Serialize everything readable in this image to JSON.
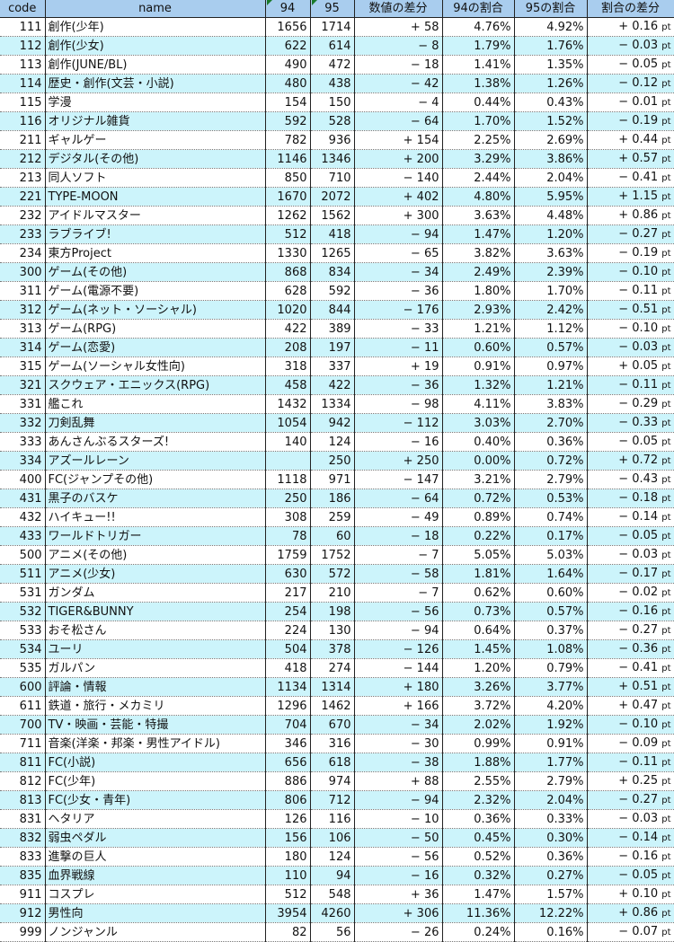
{
  "header": [
    "code",
    "name",
    "94",
    "95",
    "数値の差分",
    "94の割合",
    "95の割合",
    "割合の差分"
  ],
  "pt_suffix": "pt",
  "accent_colors": {
    "header_bg": "#a9cdee",
    "alt_row_bg": "#ccf4fb"
  },
  "rows": [
    [
      "111",
      "創作(少年)",
      "1656",
      "1714",
      "+ 58",
      "4.76%",
      "4.92%",
      "+ 0.16"
    ],
    [
      "112",
      "創作(少女)",
      "622",
      "614",
      "− 8",
      "1.79%",
      "1.76%",
      "− 0.03"
    ],
    [
      "113",
      "創作(JUNE/BL)",
      "490",
      "472",
      "− 18",
      "1.41%",
      "1.35%",
      "− 0.05"
    ],
    [
      "114",
      "歴史・創作(文芸・小説)",
      "480",
      "438",
      "− 42",
      "1.38%",
      "1.26%",
      "− 0.12"
    ],
    [
      "115",
      "学漫",
      "154",
      "150",
      "− 4",
      "0.44%",
      "0.43%",
      "− 0.01"
    ],
    [
      "116",
      "オリジナル雑貨",
      "592",
      "528",
      "− 64",
      "1.70%",
      "1.52%",
      "− 0.19"
    ],
    [
      "211",
      "ギャルゲー",
      "782",
      "936",
      "+ 154",
      "2.25%",
      "2.69%",
      "+ 0.44"
    ],
    [
      "212",
      "デジタル(その他)",
      "1146",
      "1346",
      "+ 200",
      "3.29%",
      "3.86%",
      "+ 0.57"
    ],
    [
      "213",
      "同人ソフト",
      "850",
      "710",
      "− 140",
      "2.44%",
      "2.04%",
      "− 0.41"
    ],
    [
      "221",
      "TYPE-MOON",
      "1670",
      "2072",
      "+ 402",
      "4.80%",
      "5.95%",
      "+ 1.15"
    ],
    [
      "232",
      "アイドルマスター",
      "1262",
      "1562",
      "+ 300",
      "3.63%",
      "4.48%",
      "+ 0.86"
    ],
    [
      "233",
      "ラブライブ!",
      "512",
      "418",
      "− 94",
      "1.47%",
      "1.20%",
      "− 0.27"
    ],
    [
      "234",
      "東方Project",
      "1330",
      "1265",
      "− 65",
      "3.82%",
      "3.63%",
      "− 0.19"
    ],
    [
      "300",
      "ゲーム(その他)",
      "868",
      "834",
      "− 34",
      "2.49%",
      "2.39%",
      "− 0.10"
    ],
    [
      "311",
      "ゲーム(電源不要)",
      "628",
      "592",
      "− 36",
      "1.80%",
      "1.70%",
      "− 0.11"
    ],
    [
      "312",
      "ゲーム(ネット・ソーシャル)",
      "1020",
      "844",
      "− 176",
      "2.93%",
      "2.42%",
      "− 0.51"
    ],
    [
      "313",
      "ゲーム(RPG)",
      "422",
      "389",
      "− 33",
      "1.21%",
      "1.12%",
      "− 0.10"
    ],
    [
      "314",
      "ゲーム(恋愛)",
      "208",
      "197",
      "− 11",
      "0.60%",
      "0.57%",
      "− 0.03"
    ],
    [
      "315",
      "ゲーム(ソーシャル女性向)",
      "318",
      "337",
      "+ 19",
      "0.91%",
      "0.97%",
      "+ 0.05"
    ],
    [
      "321",
      "スクウェア・エニックス(RPG)",
      "458",
      "422",
      "− 36",
      "1.32%",
      "1.21%",
      "− 0.11"
    ],
    [
      "331",
      "艦これ",
      "1432",
      "1334",
      "− 98",
      "4.11%",
      "3.83%",
      "− 0.29"
    ],
    [
      "332",
      "刀剣乱舞",
      "1054",
      "942",
      "− 112",
      "3.03%",
      "2.70%",
      "− 0.33"
    ],
    [
      "333",
      "あんさんぶるスターズ!",
      "140",
      "124",
      "− 16",
      "0.40%",
      "0.36%",
      "− 0.05"
    ],
    [
      "334",
      "アズールレーン",
      "",
      "250",
      "+ 250",
      "0.00%",
      "0.72%",
      "+ 0.72"
    ],
    [
      "400",
      "FC(ジャンプその他)",
      "1118",
      "971",
      "− 147",
      "3.21%",
      "2.79%",
      "− 0.43"
    ],
    [
      "431",
      "黒子のバスケ",
      "250",
      "186",
      "− 64",
      "0.72%",
      "0.53%",
      "− 0.18"
    ],
    [
      "432",
      "ハイキュー!!",
      "308",
      "259",
      "− 49",
      "0.89%",
      "0.74%",
      "− 0.14"
    ],
    [
      "433",
      "ワールドトリガー",
      "78",
      "60",
      "− 18",
      "0.22%",
      "0.17%",
      "− 0.05"
    ],
    [
      "500",
      "アニメ(その他)",
      "1759",
      "1752",
      "− 7",
      "5.05%",
      "5.03%",
      "− 0.03"
    ],
    [
      "511",
      "アニメ(少女)",
      "630",
      "572",
      "− 58",
      "1.81%",
      "1.64%",
      "− 0.17"
    ],
    [
      "531",
      "ガンダム",
      "217",
      "210",
      "− 7",
      "0.62%",
      "0.60%",
      "− 0.02"
    ],
    [
      "532",
      "TIGER&BUNNY",
      "254",
      "198",
      "− 56",
      "0.73%",
      "0.57%",
      "− 0.16"
    ],
    [
      "533",
      "おそ松さん",
      "224",
      "130",
      "− 94",
      "0.64%",
      "0.37%",
      "− 0.27"
    ],
    [
      "534",
      "ユーリ",
      "504",
      "378",
      "− 126",
      "1.45%",
      "1.08%",
      "− 0.36"
    ],
    [
      "535",
      "ガルパン",
      "418",
      "274",
      "− 144",
      "1.20%",
      "0.79%",
      "− 0.41"
    ],
    [
      "600",
      "評論・情報",
      "1134",
      "1314",
      "+ 180",
      "3.26%",
      "3.77%",
      "+ 0.51"
    ],
    [
      "611",
      "鉄道・旅行・メカミリ",
      "1296",
      "1462",
      "+ 166",
      "3.72%",
      "4.20%",
      "+ 0.47"
    ],
    [
      "700",
      "TV・映画・芸能・特撮",
      "704",
      "670",
      "− 34",
      "2.02%",
      "1.92%",
      "− 0.10"
    ],
    [
      "711",
      "音楽(洋楽・邦楽・男性アイドル)",
      "346",
      "316",
      "− 30",
      "0.99%",
      "0.91%",
      "− 0.09"
    ],
    [
      "811",
      "FC(小説)",
      "656",
      "618",
      "− 38",
      "1.88%",
      "1.77%",
      "− 0.11"
    ],
    [
      "812",
      "FC(少年)",
      "886",
      "974",
      "+ 88",
      "2.55%",
      "2.79%",
      "+ 0.25"
    ],
    [
      "813",
      "FC(少女・青年)",
      "806",
      "712",
      "− 94",
      "2.32%",
      "2.04%",
      "− 0.27"
    ],
    [
      "831",
      "ヘタリア",
      "126",
      "116",
      "− 10",
      "0.36%",
      "0.33%",
      "− 0.03"
    ],
    [
      "832",
      "弱虫ペダル",
      "156",
      "106",
      "− 50",
      "0.45%",
      "0.30%",
      "− 0.14"
    ],
    [
      "833",
      "進撃の巨人",
      "180",
      "124",
      "− 56",
      "0.52%",
      "0.36%",
      "− 0.16"
    ],
    [
      "835",
      "血界戦線",
      "110",
      "94",
      "− 16",
      "0.32%",
      "0.27%",
      "− 0.05"
    ],
    [
      "911",
      "コスプレ",
      "512",
      "548",
      "+ 36",
      "1.47%",
      "1.57%",
      "+ 0.10"
    ],
    [
      "912",
      "男性向",
      "3954",
      "4260",
      "+ 306",
      "11.36%",
      "12.22%",
      "+ 0.86"
    ],
    [
      "999",
      "ノンジャンル",
      "82",
      "56",
      "− 26",
      "0.24%",
      "0.16%",
      "− 0.07"
    ]
  ]
}
